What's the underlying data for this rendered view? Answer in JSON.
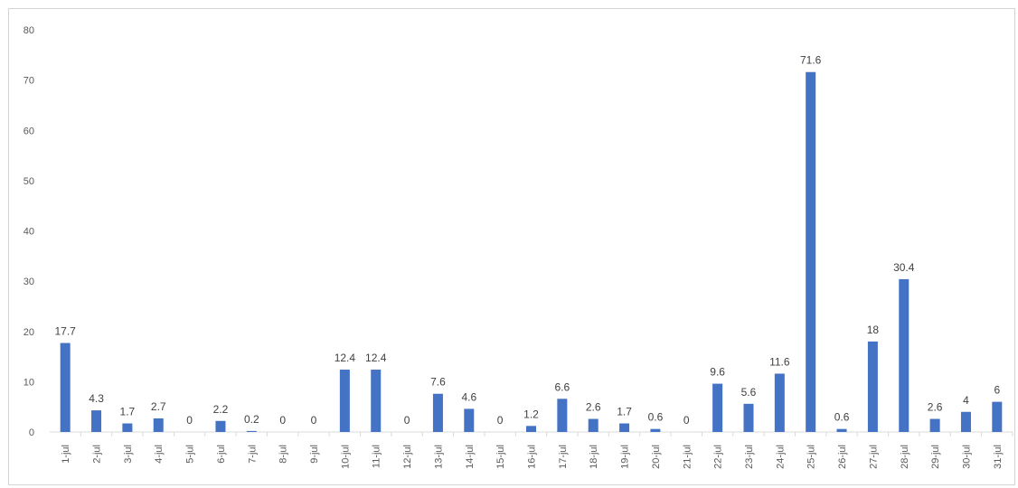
{
  "chart_data": {
    "type": "bar",
    "title": "",
    "xlabel": "",
    "ylabel": "",
    "ylim": [
      0,
      80
    ],
    "yticks": [
      0,
      10,
      20,
      30,
      40,
      50,
      60,
      70,
      80
    ],
    "grid": false,
    "legend": "none",
    "bar_color": "#4472C4",
    "categories": [
      "1-jul",
      "2-jul",
      "3-jul",
      "4-jul",
      "5-jul",
      "6-jul",
      "7-jul",
      "8-jul",
      "9-jul",
      "10-jul",
      "11-jul",
      "12-jul",
      "13-jul",
      "14-jul",
      "15-jul",
      "16-jul",
      "17-jul",
      "18-jul",
      "19-jul",
      "20-jul",
      "21-jul",
      "22-jul",
      "23-jul",
      "24-jul",
      "25-jul",
      "26-jul",
      "27-jul",
      "28-jul",
      "29-jul",
      "30-jul",
      "31-jul"
    ],
    "values": [
      17.7,
      4.3,
      1.7,
      2.7,
      0,
      2.2,
      0.2,
      0,
      0,
      12.4,
      12.4,
      0,
      7.6,
      4.6,
      0,
      1.2,
      6.6,
      2.6,
      1.7,
      0.6,
      0,
      9.6,
      5.6,
      11.6,
      71.6,
      0.6,
      18,
      30.4,
      2.6,
      4,
      6
    ]
  }
}
